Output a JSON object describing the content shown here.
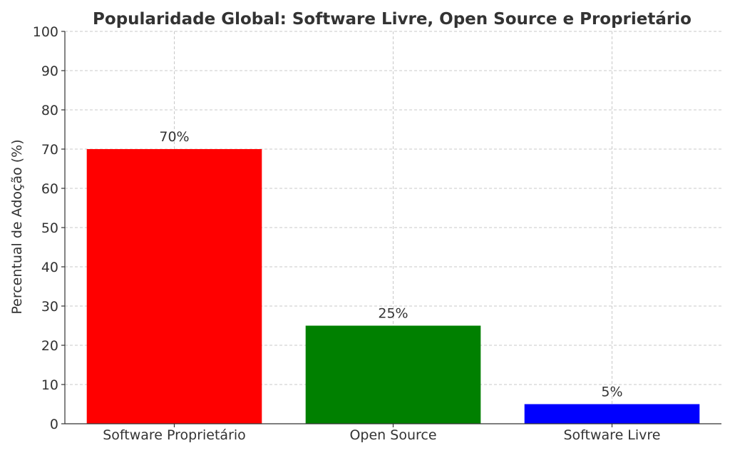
{
  "chart_data": {
    "type": "bar",
    "title": "Popularidade Global: Software Livre, Open Source e Proprietário",
    "xlabel": "",
    "ylabel": "Percentual de Adoção (%)",
    "ylim": [
      0,
      100
    ],
    "yticks": [
      0,
      10,
      20,
      30,
      40,
      50,
      60,
      70,
      80,
      90,
      100
    ],
    "grid": true,
    "categories": [
      "Software Proprietário",
      "Open Source",
      "Software Livre"
    ],
    "values": [
      70,
      25,
      5
    ],
    "data_labels": [
      "70%",
      "25%",
      "5%"
    ],
    "colors": [
      "#ff0000",
      "#008000",
      "#0000ff"
    ]
  }
}
